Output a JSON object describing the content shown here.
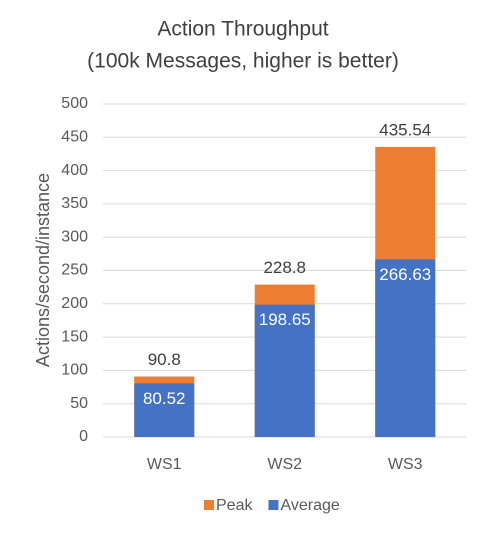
{
  "chart_data": {
    "type": "bar",
    "overlap": true,
    "title": "Action Throughput",
    "subtitle": "(100k Messages, higher is better)",
    "y_label": "Actions/second/instance",
    "categories": [
      "WS1",
      "WS2",
      "WS3"
    ],
    "series": [
      {
        "name": "Peak",
        "color": "#ed7d31",
        "values": [
          90.8,
          228.8,
          435.54
        ]
      },
      {
        "name": "Average",
        "color": "#4472c4",
        "values": [
          80.52,
          198.65,
          266.63
        ]
      }
    ],
    "ylim": [
      0,
      500
    ],
    "yticks": [
      0,
      50,
      100,
      150,
      200,
      250,
      300,
      350,
      400,
      450,
      500
    ],
    "grid": true,
    "legend": "bottom"
  }
}
